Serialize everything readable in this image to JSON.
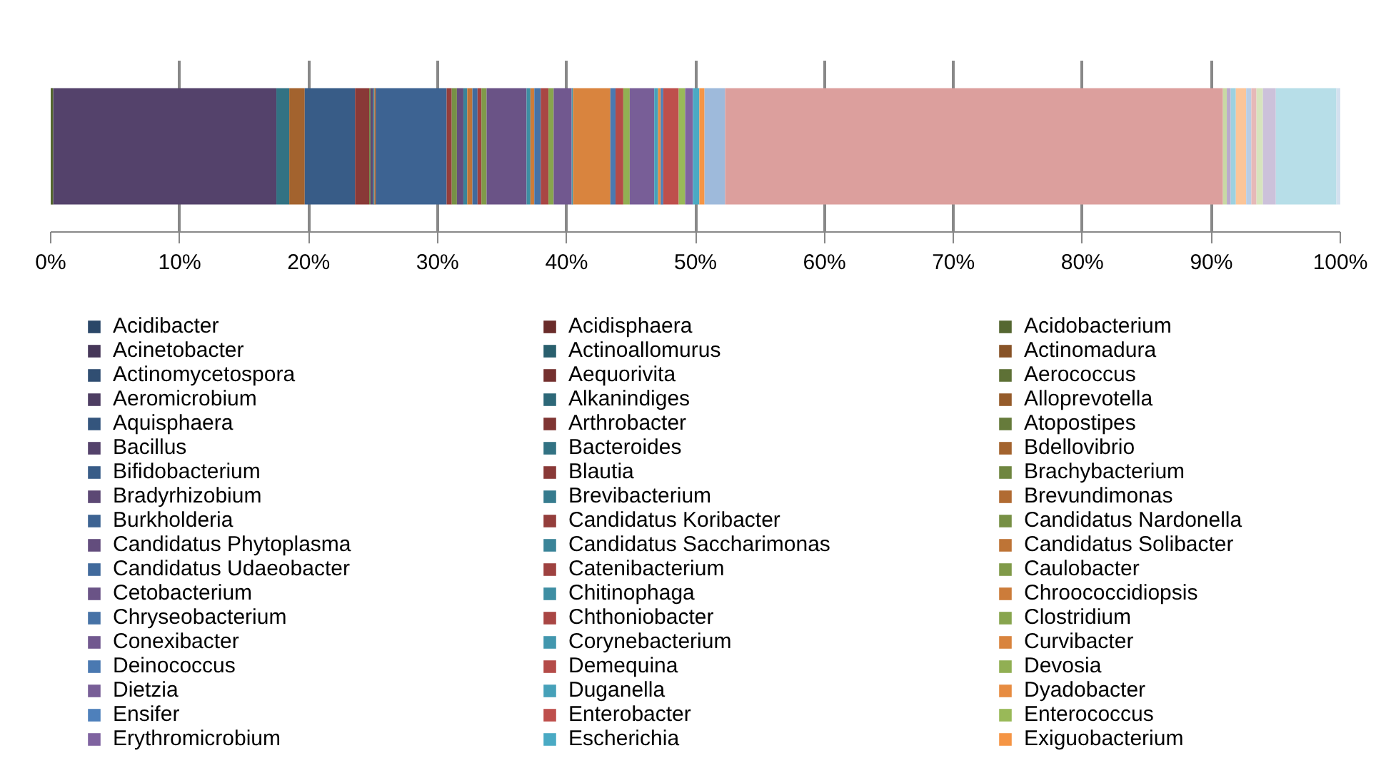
{
  "chart_data": {
    "type": "bar",
    "orientation": "horizontal",
    "stacked": true,
    "categories": [
      null
    ],
    "xlim": [
      0,
      100
    ],
    "xticks": [
      {
        "value": 0,
        "label": "0%"
      },
      {
        "value": 10,
        "label": "10%"
      },
      {
        "value": 20,
        "label": "20%"
      },
      {
        "value": 30,
        "label": "30%"
      },
      {
        "value": 40,
        "label": "40%"
      },
      {
        "value": 50,
        "label": "50%"
      },
      {
        "value": 60,
        "label": "60%"
      },
      {
        "value": 70,
        "label": "70%"
      },
      {
        "value": 80,
        "label": "80%"
      },
      {
        "value": 90,
        "label": "90%"
      },
      {
        "value": 100,
        "label": "100%"
      }
    ],
    "grid": "x",
    "legend": "bottom",
    "series": [
      {
        "name": "Acidibacter",
        "color": "#2b4768",
        "values": [
          0
        ]
      },
      {
        "name": "Acidisphaera",
        "color": "#6a2c2a",
        "values": [
          0
        ]
      },
      {
        "name": "Acidobacterium",
        "color": "#556731",
        "values": [
          0.2
        ]
      },
      {
        "name": "Acinetobacter",
        "color": "#463759",
        "values": [
          0
        ]
      },
      {
        "name": "Actinoallomurus",
        "color": "#295f6d",
        "values": [
          0
        ]
      },
      {
        "name": "Actinomadura",
        "color": "#885327",
        "values": [
          0
        ]
      },
      {
        "name": "Actinomycetospora",
        "color": "#304e72",
        "values": [
          0
        ]
      },
      {
        "name": "Aequorivita",
        "color": "#74302f",
        "values": [
          0
        ]
      },
      {
        "name": "Aerococcus",
        "color": "#5e7136",
        "values": [
          0
        ]
      },
      {
        "name": "Aeromicrobium",
        "color": "#4d3d62",
        "values": [
          0
        ]
      },
      {
        "name": "Alkanindiges",
        "color": "#2d6878",
        "values": [
          0
        ]
      },
      {
        "name": "Alloprevotella",
        "color": "#955b2a",
        "values": [
          0
        ]
      },
      {
        "name": "Aquisphaera",
        "color": "#34557d",
        "values": [
          0
        ]
      },
      {
        "name": "Arthrobacter",
        "color": "#7f3533",
        "values": [
          0
        ]
      },
      {
        "name": "Atopostipes",
        "color": "#667b3b",
        "values": [
          0
        ]
      },
      {
        "name": "Bacillus",
        "color": "#54426b",
        "values": [
          17.3
        ]
      },
      {
        "name": "Bacteroides",
        "color": "#327283",
        "values": [
          1.0
        ]
      },
      {
        "name": "Bdellovibrio",
        "color": "#a3632e",
        "values": [
          1.2
        ]
      },
      {
        "name": "Bifidobacterium",
        "color": "#385c87",
        "values": [
          3.9
        ]
      },
      {
        "name": "Blautia",
        "color": "#893937",
        "values": [
          1.1
        ]
      },
      {
        "name": "Brachybacterium",
        "color": "#6f8640",
        "values": [
          0.1
        ]
      },
      {
        "name": "Bradyrhizobium",
        "color": "#5c4874",
        "values": [
          0.2
        ]
      },
      {
        "name": "Brevibacterium",
        "color": "#367b8e",
        "values": [
          0.1
        ]
      },
      {
        "name": "Brevundimonas",
        "color": "#b16b32",
        "values": [
          0.1
        ]
      },
      {
        "name": "Burkholderia",
        "color": "#3d6392",
        "values": [
          5.5
        ]
      },
      {
        "name": "Candidatus Koribacter",
        "color": "#943e3b",
        "values": [
          0.4
        ]
      },
      {
        "name": "Candidatus Nardonella",
        "color": "#779045",
        "values": [
          0.4
        ]
      },
      {
        "name": "Candidatus Phytoplasma",
        "color": "#634d7d",
        "values": [
          0.5
        ]
      },
      {
        "name": "Candidatus Saccharimonas",
        "color": "#3a8498",
        "values": [
          0.3
        ]
      },
      {
        "name": "Candidatus Solibacter",
        "color": "#be7436",
        "values": [
          0.4
        ]
      },
      {
        "name": "Candidatus Udaeobacter",
        "color": "#416a9c",
        "values": [
          0.4
        ]
      },
      {
        "name": "Catenibacterium",
        "color": "#9e4240",
        "values": [
          0.3
        ]
      },
      {
        "name": "Caulobacter",
        "color": "#809a49",
        "values": [
          0.4
        ]
      },
      {
        "name": "Cetobacterium",
        "color": "#6a5386",
        "values": [
          3.1
        ]
      },
      {
        "name": "Chitinophaga",
        "color": "#3e8ea3",
        "values": [
          0.3
        ]
      },
      {
        "name": "Chroococcidiopsis",
        "color": "#cc7c3a",
        "values": [
          0.3
        ]
      },
      {
        "name": "Chryseobacterium",
        "color": "#4672a6",
        "values": [
          0.5
        ]
      },
      {
        "name": "Chthoniobacter",
        "color": "#a94644",
        "values": [
          0.6
        ]
      },
      {
        "name": "Clostridium",
        "color": "#88a54e",
        "values": [
          0.4
        ]
      },
      {
        "name": "Conexibacter",
        "color": "#71588f",
        "values": [
          1.4
        ]
      },
      {
        "name": "Corynebacterium",
        "color": "#4297ae",
        "values": [
          0.1
        ]
      },
      {
        "name": "Curvibacter",
        "color": "#d9843e",
        "values": [
          2.9
        ]
      },
      {
        "name": "Deinococcus",
        "color": "#4a79b1",
        "values": [
          0.4
        ]
      },
      {
        "name": "Demequina",
        "color": "#b44b48",
        "values": [
          0.6
        ]
      },
      {
        "name": "Devosia",
        "color": "#91af53",
        "values": [
          0.5
        ]
      },
      {
        "name": "Dietzia",
        "color": "#785e97",
        "values": [
          1.9
        ]
      },
      {
        "name": "Duganella",
        "color": "#46a1b9",
        "values": [
          0.3
        ]
      },
      {
        "name": "Dyadobacter",
        "color": "#e78c41",
        "values": [
          0.2
        ]
      },
      {
        "name": "Ensifer",
        "color": "#4e80bb",
        "values": [
          0.2
        ]
      },
      {
        "name": "Enterobacter",
        "color": "#be4f4c",
        "values": [
          1.2
        ]
      },
      {
        "name": "Enterococcus",
        "color": "#99b958",
        "values": [
          0.5
        ]
      },
      {
        "name": "Erythromicrobium",
        "color": "#7f63a0",
        "values": [
          0.6
        ]
      },
      {
        "name": "Escherichia",
        "color": "#4aaac4",
        "values": [
          0.5
        ]
      },
      {
        "name": "Exiguobacterium",
        "color": "#f59545",
        "values": [
          0.4
        ]
      },
      {
        "color": "#9ebadb",
        "values": [
          1.6
        ]
      },
      {
        "color": "#dc9f9d",
        "values": [
          38.6
        ]
      },
      {
        "color": "#c8d9a4",
        "values": [
          0.3
        ]
      },
      {
        "color": "#b9aacc",
        "values": [
          0.3
        ]
      },
      {
        "color": "#9cd1e0",
        "values": [
          0.4
        ]
      },
      {
        "color": "#fbc599",
        "values": [
          0.8
        ]
      },
      {
        "color": "#b9cde5",
        "values": [
          0.4
        ]
      },
      {
        "color": "#e6b9b8",
        "values": [
          0.4
        ]
      },
      {
        "color": "#d7e4bd",
        "values": [
          0.5
        ]
      },
      {
        "color": "#ccc1da",
        "values": [
          1.0
        ]
      },
      {
        "color": "#b7dee8",
        "values": [
          4.7
        ]
      },
      {
        "color": "#fcd5b5",
        "values": [
          null
        ]
      },
      {
        "color": "#d3e0ef",
        "values": [
          0.3
        ]
      }
    ]
  }
}
